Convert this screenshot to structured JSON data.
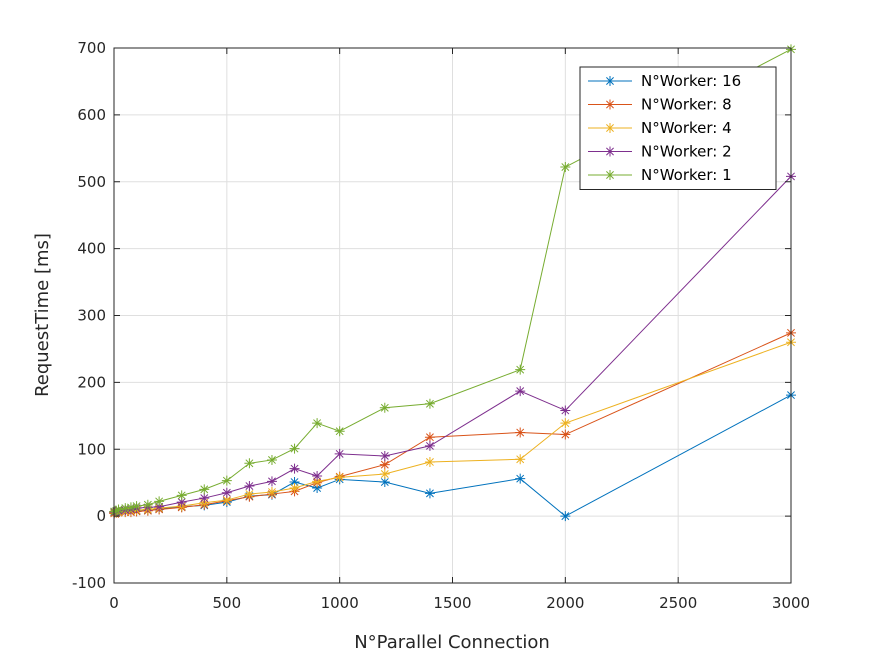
{
  "chart_data": {
    "type": "line",
    "title": "",
    "xlabel": "N°Parallel Connection",
    "ylabel": "RequestTime [ms]",
    "xlim": [
      0,
      3000
    ],
    "ylim": [
      -100,
      700
    ],
    "xticks": [
      0,
      500,
      1000,
      1500,
      2000,
      2500,
      3000
    ],
    "yticks": [
      -100,
      0,
      100,
      200,
      300,
      400,
      500,
      600,
      700
    ],
    "grid": true,
    "legend_location": "top-right",
    "marker": "asterisk",
    "series": [
      {
        "name": "N°Worker: 16",
        "color": "#0072BD",
        "x": [
          1,
          10,
          20,
          50,
          75,
          100,
          150,
          200,
          300,
          400,
          500,
          600,
          700,
          800,
          900,
          1000,
          1200,
          1400,
          1800,
          2000,
          3000
        ],
        "y": [
          5,
          6,
          7,
          7,
          8,
          8,
          9,
          11,
          14,
          16,
          21,
          30,
          32,
          51,
          42,
          55,
          51,
          34,
          56,
          0,
          181
        ]
      },
      {
        "name": "N°Worker: 8",
        "color": "#D95319",
        "x": [
          1,
          10,
          20,
          50,
          75,
          100,
          150,
          200,
          300,
          400,
          500,
          600,
          700,
          800,
          900,
          1000,
          1200,
          1400,
          1800,
          2000,
          3000
        ],
        "y": [
          4,
          5,
          5,
          6,
          6,
          7,
          8,
          10,
          13,
          17,
          23,
          29,
          33,
          37,
          50,
          59,
          77,
          118,
          125,
          122,
          274
        ]
      },
      {
        "name": "N°Worker: 4",
        "color": "#EDB120",
        "x": [
          1,
          10,
          20,
          50,
          75,
          100,
          150,
          200,
          300,
          400,
          500,
          600,
          700,
          800,
          900,
          1000,
          1200,
          1400,
          1800,
          2000,
          3000
        ],
        "y": [
          5,
          6,
          6,
          7,
          8,
          9,
          10,
          12,
          15,
          20,
          24,
          33,
          36,
          42,
          52,
          58,
          63,
          81,
          85,
          139,
          260
        ]
      },
      {
        "name": "N°Worker: 2",
        "color": "#7E2F8E",
        "x": [
          1,
          10,
          20,
          50,
          75,
          100,
          150,
          200,
          300,
          400,
          500,
          600,
          700,
          800,
          900,
          1000,
          1200,
          1400,
          1800,
          2000,
          3000
        ],
        "y": [
          6,
          7,
          8,
          9,
          10,
          12,
          13,
          14,
          21,
          27,
          35,
          45,
          52,
          71,
          60,
          93,
          90,
          105,
          187,
          158,
          508
        ]
      },
      {
        "name": "N°Worker: 1",
        "color": "#77AC30",
        "x": [
          1,
          10,
          20,
          50,
          75,
          100,
          150,
          200,
          300,
          400,
          500,
          600,
          700,
          800,
          900,
          1000,
          1200,
          1400,
          1800,
          2000,
          3000
        ],
        "y": [
          7,
          8,
          10,
          12,
          13,
          15,
          17,
          22,
          31,
          40,
          53,
          79,
          84,
          101,
          139,
          127,
          162,
          168,
          219,
          522,
          698
        ]
      }
    ]
  }
}
